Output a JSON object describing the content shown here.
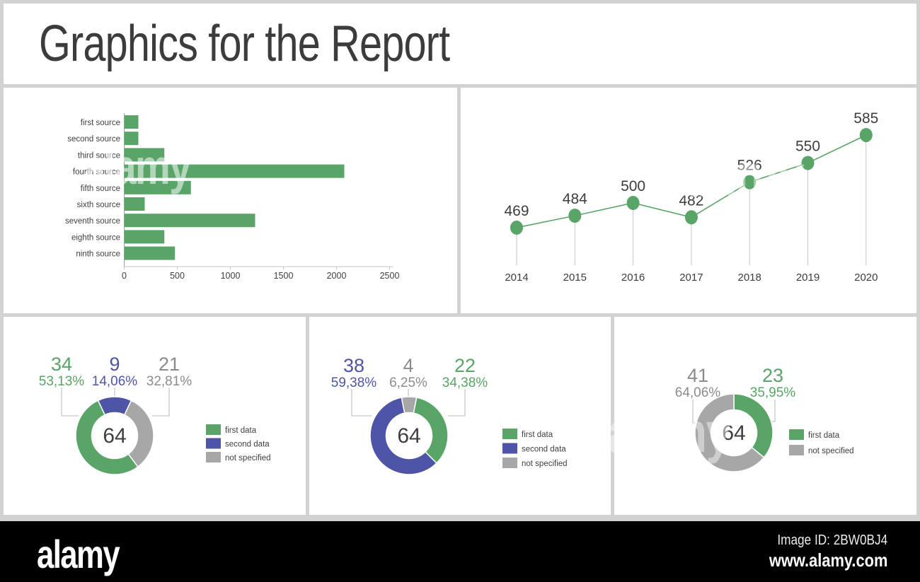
{
  "page": {
    "title": "Graphics for the Report"
  },
  "watermark": {
    "text": "alamy"
  },
  "footer": {
    "logo": "alamy",
    "image_id": "Image ID: 2BW0BJ4",
    "url": "www.alamy.com"
  },
  "colors": {
    "green": "#58a567",
    "blue": "#4f55a6",
    "gray": "#a7a7a7",
    "gray_label": "#8c8c8c",
    "text": "#3f3f3f",
    "axis": "#9a9a9a",
    "axis_light": "#c6c6c6",
    "leader": "#b8b8b8",
    "page_bg": "#d2d2d2",
    "panel_bg": "#ffffff",
    "footer_bg": "#000000"
  },
  "chart_data": [
    {
      "id": "sources_bar",
      "type": "bar",
      "orientation": "horizontal",
      "title": "",
      "categories": [
        "first source",
        "second source",
        "third source",
        "fourth source",
        "fifth source",
        "sixth source",
        "seventh source",
        "eighth source",
        "ninth source"
      ],
      "values": [
        130,
        130,
        375,
        2070,
        625,
        190,
        1230,
        375,
        475
      ],
      "xticks": [
        "0",
        "500",
        "1000",
        "1500",
        "2000",
        "2500"
      ],
      "xtick_values": [
        0,
        500,
        1000,
        1500,
        2000,
        2500
      ],
      "xlim": [
        0,
        2500
      ],
      "bar_color": "green",
      "grid": false,
      "legend": "none"
    },
    {
      "id": "yearly_line",
      "type": "line",
      "title": "",
      "x": [
        "2014",
        "2015",
        "2016",
        "2017",
        "2018",
        "2019",
        "2020"
      ],
      "values": [
        469,
        484,
        500,
        482,
        526,
        550,
        585
      ],
      "data_labels": [
        "469",
        "484",
        "500",
        "482",
        "526",
        "550",
        "585"
      ],
      "ylim": [
        422,
        605
      ],
      "line_color": "green",
      "marker": "circle",
      "drop_lines": true,
      "grid": false,
      "legend": "none"
    },
    {
      "id": "donut_1",
      "type": "pie",
      "subtype": "donut",
      "center_label": "64",
      "total": 64,
      "start_offset_deg": -25.3125,
      "segments": [
        {
          "name": "second data",
          "value": 9,
          "color": "blue"
        },
        {
          "name": "not specified",
          "value": 21,
          "color": "gray"
        },
        {
          "name": "first data",
          "value": 34,
          "color": "green"
        }
      ],
      "callouts": [
        {
          "value": "34",
          "pct": "53,13%",
          "color": "green"
        },
        {
          "value": "9",
          "pct": "14,06%",
          "color": "blue"
        },
        {
          "value": "21",
          "pct": "32,81%",
          "color": "gray"
        }
      ],
      "legend": [
        {
          "label": "first data",
          "color": "green"
        },
        {
          "label": "second data",
          "color": "blue"
        },
        {
          "label": "not specified",
          "color": "gray"
        }
      ]
    },
    {
      "id": "donut_2",
      "type": "pie",
      "subtype": "donut",
      "center_label": "64",
      "total": 64,
      "start_offset_deg": -11.25,
      "segments": [
        {
          "name": "not specified",
          "value": 4,
          "color": "gray"
        },
        {
          "name": "first data",
          "value": 22,
          "color": "green"
        },
        {
          "name": "second data",
          "value": 38,
          "color": "blue"
        }
      ],
      "callouts": [
        {
          "value": "38",
          "pct": "59,38%",
          "color": "blue"
        },
        {
          "value": "4",
          "pct": "6,25%",
          "color": "gray"
        },
        {
          "value": "22",
          "pct": "34,38%",
          "color": "green"
        }
      ],
      "legend": [
        {
          "label": "first data",
          "color": "green"
        },
        {
          "label": "second data",
          "color": "blue"
        },
        {
          "label": "not specified",
          "color": "gray"
        }
      ]
    },
    {
      "id": "donut_3",
      "type": "pie",
      "subtype": "donut",
      "center_label": "64",
      "total": 64,
      "start_offset_deg": 0,
      "segments": [
        {
          "name": "first data",
          "value": 23,
          "color": "green"
        },
        {
          "name": "not specified",
          "value": 41,
          "color": "gray"
        }
      ],
      "callouts": [
        {
          "value": "41",
          "pct": "64,06%",
          "color": "gray"
        },
        {
          "value": "23",
          "pct": "35,95%",
          "color": "green"
        }
      ],
      "legend": [
        {
          "label": "first data",
          "color": "green"
        },
        {
          "label": "not specified",
          "color": "gray"
        }
      ]
    }
  ]
}
